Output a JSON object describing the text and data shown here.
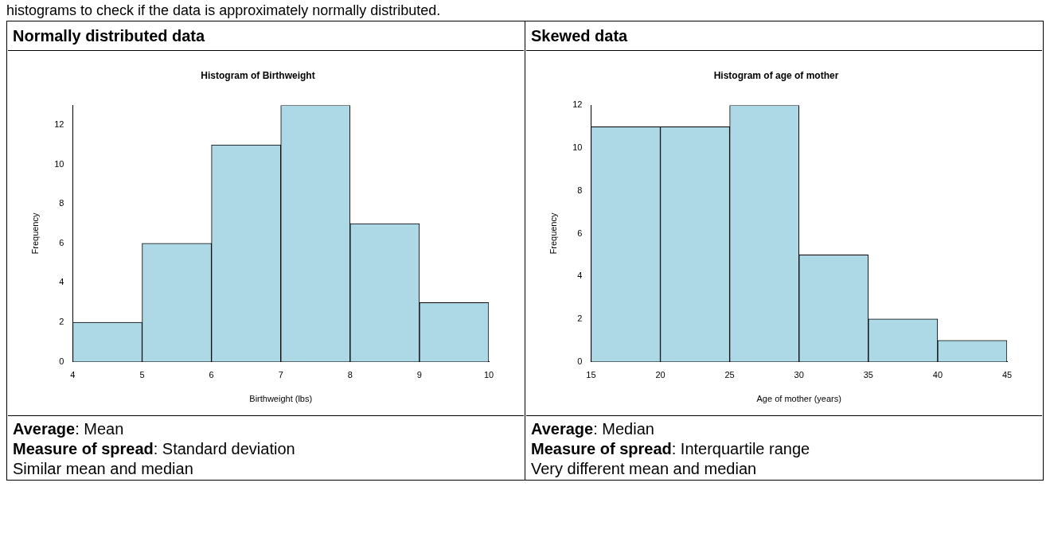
{
  "chart_data": [
    {
      "type": "histogram",
      "title": "Normally distributed data",
      "subtitle": "Histogram of Birthweight",
      "xlabel": "Birthweight (lbs)",
      "ylabel": "Frequency",
      "bins": [
        4,
        5,
        6,
        7,
        8,
        9,
        10
      ],
      "values": [
        2,
        6,
        11,
        13,
        7,
        3
      ],
      "color": "#add8e6",
      "xlim": [
        4,
        10
      ],
      "xticks": [
        4,
        5,
        6,
        7,
        8,
        9,
        10
      ],
      "ylim": [
        0,
        13
      ],
      "yticks": [
        0,
        2,
        4,
        6,
        8,
        10,
        12
      ],
      "grid": false,
      "legend": false,
      "annotations": [
        "histograms to check if the data is approximately normally distributed.",
        "Average: Mean",
        "Measure of spread: Standard deviation",
        "Similar mean and median"
      ]
    },
    {
      "type": "histogram",
      "title": "Skewed data",
      "subtitle": "Histogram of age of mother",
      "xlabel": "Age of mother (years)",
      "ylabel": "Frequency",
      "bins": [
        15,
        20,
        25,
        30,
        35,
        40,
        45
      ],
      "values": [
        11,
        11,
        12,
        5,
        2,
        1
      ],
      "color": "#add8e6",
      "xlim": [
        15,
        45
      ],
      "xticks": [
        15,
        20,
        25,
        30,
        35,
        40,
        45
      ],
      "ylim": [
        0,
        12
      ],
      "yticks": [
        0,
        2,
        4,
        6,
        8,
        10,
        12
      ],
      "grid": false,
      "legend": false,
      "annotations": [
        "Average: Median",
        "Measure of spread: Interquartile range",
        "Very different mean and median"
      ]
    }
  ]
}
